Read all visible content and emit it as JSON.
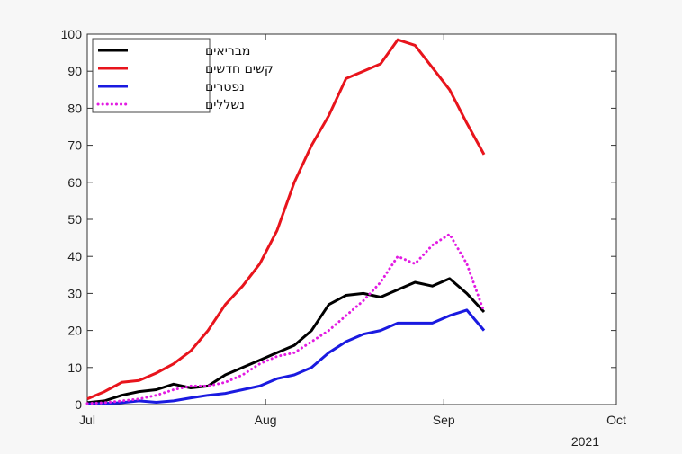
{
  "chart_data": {
    "type": "line",
    "title": "",
    "xlabel": "",
    "ylabel": "",
    "year_label": "2021",
    "ylim": [
      0,
      100
    ],
    "yticks": [
      0,
      10,
      20,
      30,
      40,
      50,
      60,
      70,
      80,
      90,
      100
    ],
    "xlim": [
      "2021-07-01",
      "2021-10-01"
    ],
    "xticks": [
      {
        "date": "2021-07-01",
        "label": "Jul"
      },
      {
        "date": "2021-08-01",
        "label": "Aug"
      },
      {
        "date": "2021-09-01",
        "label": "Sep"
      },
      {
        "date": "2021-10-01",
        "label": "Oct"
      }
    ],
    "legend_position": "top-left",
    "grid": false,
    "x": [
      "2021-07-01",
      "2021-07-04",
      "2021-07-07",
      "2021-07-10",
      "2021-07-13",
      "2021-07-16",
      "2021-07-19",
      "2021-07-22",
      "2021-07-25",
      "2021-07-28",
      "2021-07-31",
      "2021-08-03",
      "2021-08-06",
      "2021-08-09",
      "2021-08-12",
      "2021-08-15",
      "2021-08-18",
      "2021-08-21",
      "2021-08-24",
      "2021-08-27",
      "2021-08-30",
      "2021-09-02",
      "2021-09-05",
      "2021-09-08"
    ],
    "series": [
      {
        "name": "מבריאים",
        "color": "#000000",
        "style": "solid",
        "values": [
          0.5,
          1,
          2.5,
          3.5,
          4,
          5.5,
          4.5,
          5,
          8,
          10,
          12,
          14,
          16,
          20,
          27,
          29.5,
          30,
          29,
          31,
          33,
          32,
          34,
          30,
          25
        ]
      },
      {
        "name": "קשים חדשים",
        "color": "#e8141c",
        "style": "solid",
        "values": [
          1.5,
          3.5,
          6,
          6.5,
          8.5,
          11,
          14.5,
          20,
          27,
          32,
          38,
          47,
          60,
          70,
          78,
          88,
          90,
          92,
          98.5,
          97,
          91,
          85,
          76,
          67.5
        ]
      },
      {
        "name": "נפטרים",
        "color": "#1a1ae0",
        "style": "solid",
        "values": [
          0.2,
          0.3,
          0.5,
          1,
          0.6,
          1,
          1.8,
          2.5,
          3,
          4,
          5,
          7,
          8,
          10,
          14,
          17,
          19,
          20,
          22,
          22,
          22,
          24,
          25.5,
          20
        ]
      },
      {
        "name": "נשללים",
        "color": "#e21be2",
        "style": "dotted",
        "values": [
          0.3,
          0.5,
          1,
          1.5,
          2.5,
          4,
          5,
          5,
          6,
          8,
          11,
          13,
          14,
          17,
          20,
          24,
          28,
          33,
          40,
          38,
          43,
          46,
          38,
          25
        ]
      }
    ]
  }
}
